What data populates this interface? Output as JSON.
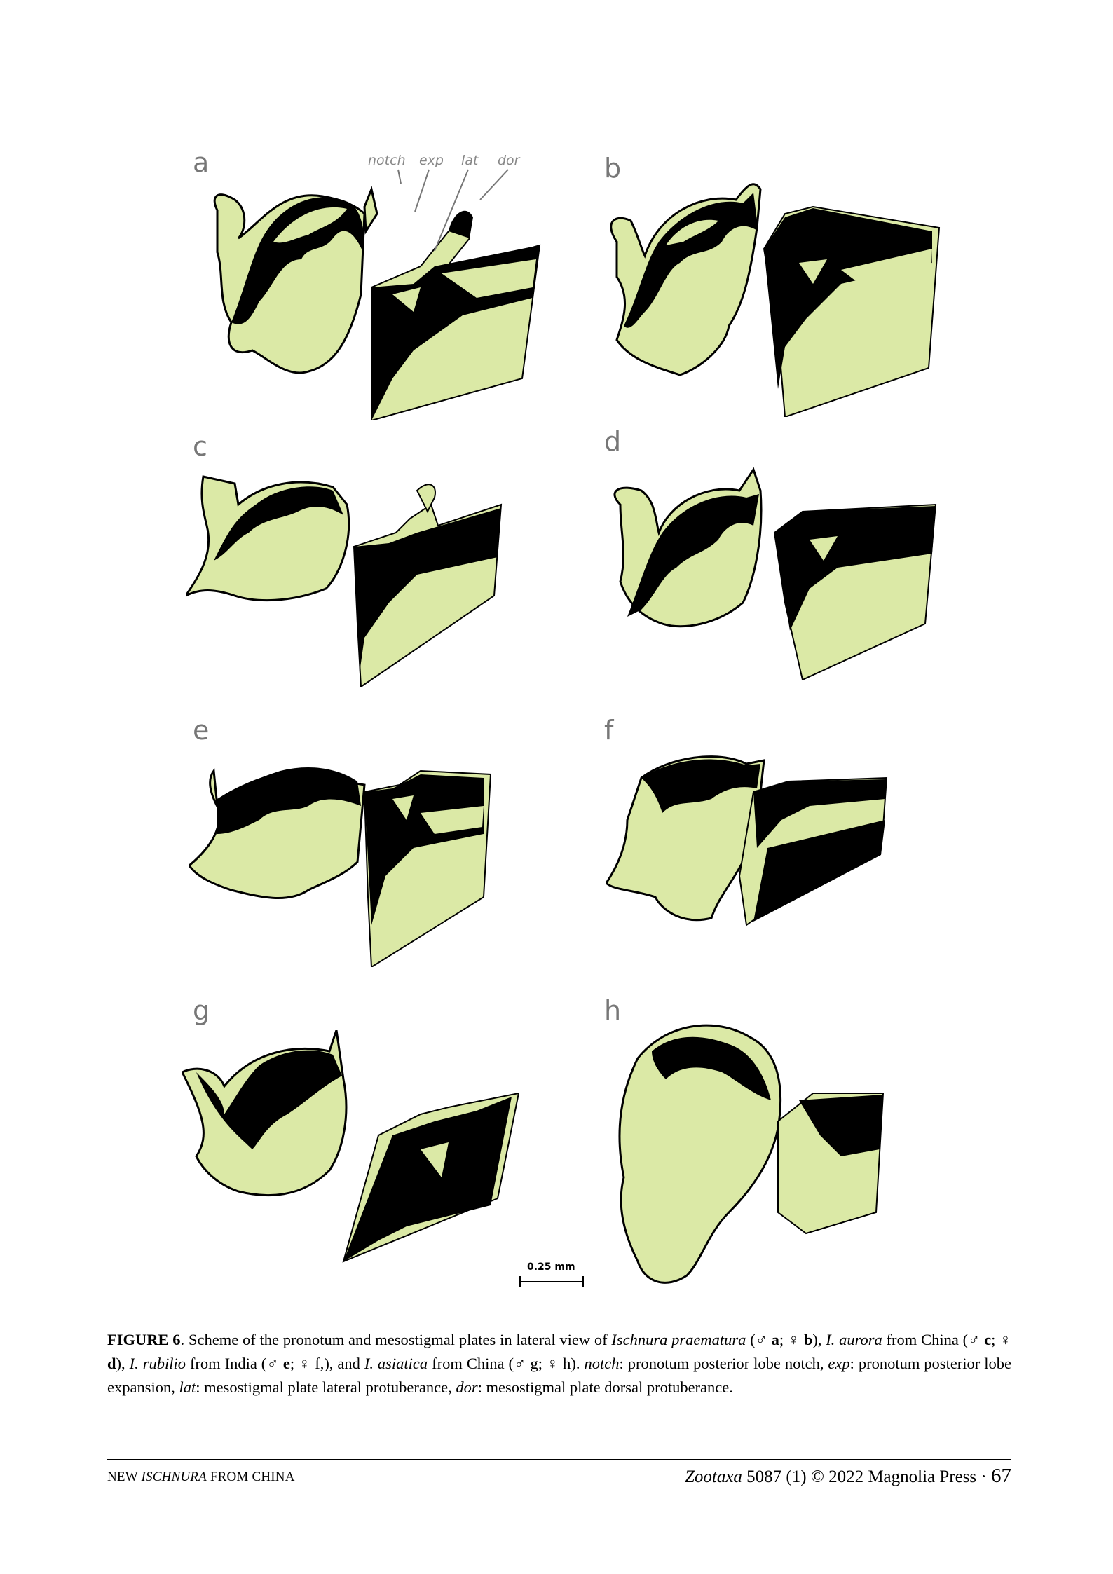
{
  "panels": [
    {
      "letter": "a"
    },
    {
      "letter": "b"
    },
    {
      "letter": "c"
    },
    {
      "letter": "d"
    },
    {
      "letter": "e"
    },
    {
      "letter": "f"
    },
    {
      "letter": "g"
    },
    {
      "letter": "h"
    }
  ],
  "callouts": {
    "notch": "notch",
    "exp": "exp",
    "lat": "lat",
    "dor": "dor"
  },
  "scale_bar": {
    "label": "0.25 mm"
  },
  "caption": {
    "figure_label": "FIGURE 6",
    "t1": ". Scheme of the pronotum and mesostigmal plates in lateral view of ",
    "sp1": "Ischnura praematura",
    "t2": " (♂ ",
    "a": "a",
    "t3": "; ♀ ",
    "b": "b",
    "t4": "), ",
    "sp2": "I. aurora",
    "t5": " from China (♂ ",
    "c": "c",
    "t6": "; ♀ ",
    "d": "d",
    "t7": "), ",
    "sp3": "I. rubilio",
    "t8": " from India (♂ ",
    "e": "e",
    "t9": "; ♀ f,), and ",
    "sp4": "I. asiatica",
    "t10": " from China (♂ g; ♀ h). ",
    "notch_term": "notch",
    "t11": ": pronotum posterior lobe notch, ",
    "exp_term": "exp",
    "t12": ": pronotum posterior lobe expansion, ",
    "lat_term": "lat",
    "t13": ": mesostigmal plate lateral protuberance, ",
    "dor_term": "dor",
    "t14": ": mesostigmal plate dorsal protuberance."
  },
  "footer": {
    "left_prefix": "NEW ",
    "left_genus": "ISCHNURA",
    "left_suffix": " FROM CHINA",
    "journal": "Zootaxa",
    "citation": " 5087 (1) © 2022 Magnolia Press",
    "separator": " · ",
    "page_number": "67"
  },
  "colors": {
    "plate_fill": "#dbe9a6",
    "dark": "#000000",
    "letter_grey": "#777777"
  }
}
